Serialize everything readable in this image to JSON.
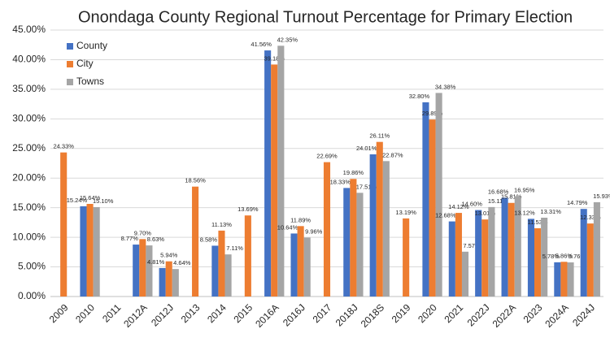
{
  "chart_data": {
    "type": "bar",
    "title": "Onondaga County Regional Turnout Percentage for Primary Election",
    "categories": [
      "2009",
      "2010",
      "2011",
      "2012A",
      "2012J",
      "2013",
      "2014",
      "2015",
      "2016A",
      "2016J",
      "2017",
      "2018J",
      "2018S",
      "2019",
      "2020",
      "2021",
      "2022J",
      "2022A",
      "2023",
      "2024A",
      "2024J"
    ],
    "series": [
      {
        "name": "County",
        "color": "#4472c4",
        "values": [
          null,
          15.24,
          null,
          8.77,
          4.81,
          null,
          8.58,
          null,
          41.56,
          10.64,
          null,
          18.33,
          24.01,
          null,
          32.8,
          12.68,
          14.6,
          16.68,
          13.12,
          5.78,
          14.79
        ],
        "value_labels": [
          null,
          "15.24%",
          null,
          "8.77%",
          "4.81%",
          null,
          "8.58%",
          null,
          "41.56%",
          "10.64%",
          null,
          "18.33%",
          "24.01%",
          null,
          "32.80%",
          "12.68%",
          "14.60%",
          "16.68%",
          "13.12%",
          "5.78%",
          "14.79%"
        ]
      },
      {
        "name": "City",
        "color": "#ed7d31",
        "values": [
          24.33,
          15.64,
          null,
          9.7,
          5.94,
          18.56,
          11.13,
          13.69,
          39.18,
          11.89,
          22.69,
          19.86,
          26.11,
          13.19,
          29.89,
          14.12,
          13.01,
          15.81,
          11.53,
          5.86,
          12.33
        ],
        "value_labels": [
          "24.33%",
          "15.64%",
          null,
          "9.70%",
          "5.94%",
          "18.56%",
          "11.13%",
          "13.69%",
          "39.18%",
          "11.89%",
          "22.69%",
          "19.86%",
          "26.11%",
          "13.19%",
          "29.89%",
          "14.12%",
          "13.01%",
          "15.81%",
          "11.53%",
          "5.86%",
          "12.33%"
        ]
      },
      {
        "name": "Towns",
        "color": "#a5a5a5",
        "values": [
          null,
          15.1,
          null,
          8.63,
          4.64,
          null,
          7.11,
          null,
          42.35,
          9.96,
          null,
          17.51,
          22.87,
          null,
          34.38,
          7.57,
          15.11,
          16.95,
          13.31,
          5.76,
          15.93
        ],
        "value_labels": [
          null,
          "15.10%",
          null,
          "8.63%",
          "4.64%",
          null,
          "7.11%",
          null,
          "42.35%",
          "9.96%",
          null,
          "17.51%",
          "22.87%",
          null,
          "34.38%",
          "7.57%",
          "15.11%",
          "16.95%",
          "13.31%",
          "5.76%",
          "15.93%"
        ]
      }
    ],
    "ylim": [
      0,
      45
    ],
    "yticks": [
      {
        "value": 0,
        "label": "0.00%"
      },
      {
        "value": 5,
        "label": "5.00%"
      },
      {
        "value": 10,
        "label": "10.00%"
      },
      {
        "value": 15,
        "label": "15.00%"
      },
      {
        "value": 20,
        "label": "20.00%"
      },
      {
        "value": 25,
        "label": "25.00%"
      },
      {
        "value": 30,
        "label": "30.00%"
      },
      {
        "value": 35,
        "label": "35.00%"
      },
      {
        "value": 40,
        "label": "40.00%"
      },
      {
        "value": 45,
        "label": "45.00%"
      }
    ],
    "grid": true,
    "legend": "upper-left"
  }
}
